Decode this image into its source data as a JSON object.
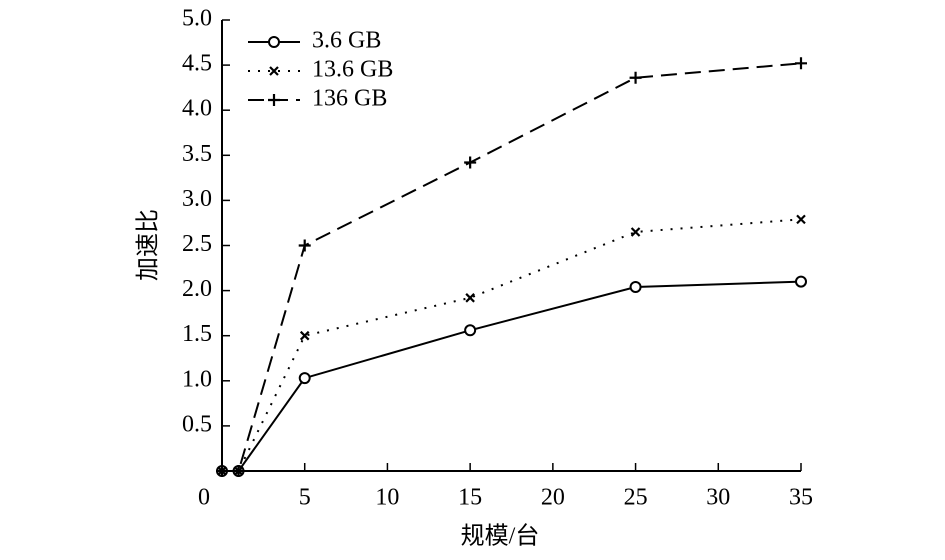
{
  "chart_data": {
    "type": "line",
    "x_label": "规模/台",
    "y_label": "加速比",
    "x": [
      0,
      1,
      5,
      15,
      25,
      35
    ],
    "series": [
      {
        "name": "3.6 GB",
        "color": "#000000",
        "marker": "circle",
        "line_style": "solid",
        "values": [
          0,
          0,
          1.03,
          1.56,
          2.04,
          2.1
        ]
      },
      {
        "name": "13.6 GB",
        "color": "#000000",
        "marker": "x",
        "line_style": "dotted",
        "values": [
          0,
          0,
          1.5,
          1.92,
          2.65,
          2.79
        ]
      },
      {
        "name": "136 GB",
        "color": "#000000",
        "marker": "plus",
        "line_style": "dashed",
        "values": [
          0,
          0,
          2.5,
          3.42,
          4.36,
          4.52
        ]
      }
    ],
    "xlim": [
      0,
      35
    ],
    "xticks": [
      0,
      5,
      10,
      15,
      20,
      25,
      30,
      35
    ],
    "ylim": [
      0,
      5
    ],
    "yticks": [
      0.5,
      {
        "value": 1,
        "label": "1.0"
      },
      1.5,
      {
        "value": 2,
        "label": "2.0"
      },
      2.5,
      {
        "value": 3,
        "label": "3.0"
      },
      3.5,
      {
        "value": 4,
        "label": "4.0"
      },
      4.5,
      {
        "value": 5,
        "label": "5.0"
      }
    ],
    "legend": "upper left",
    "grid": false
  }
}
